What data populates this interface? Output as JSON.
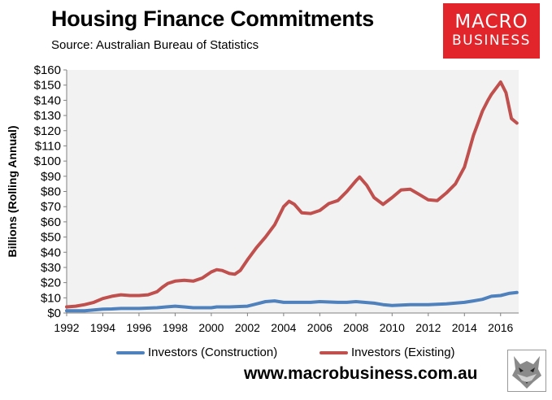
{
  "header": {
    "title": "Housing Finance Commitments",
    "subtitle": "Source: Australian Bureau of Statistics"
  },
  "logo": {
    "line1": "MACRO",
    "line2": "BUSINESS",
    "color": "#e2242b"
  },
  "footer": {
    "website": "www.macrobusiness.com.au",
    "mascot_icon": "wolf-head-icon"
  },
  "chart_data": {
    "type": "line",
    "title": "Housing Finance Commitments",
    "subtitle": "Source: Australian Bureau of Statistics",
    "xlabel": "",
    "ylabel": "Billions (Rolling Annual)",
    "xlim": [
      1992,
      2017
    ],
    "ylim": [
      0,
      160
    ],
    "x_ticks": [
      1992,
      1994,
      1996,
      1998,
      2000,
      2002,
      2004,
      2006,
      2008,
      2010,
      2012,
      2014,
      2016
    ],
    "x_tick_labels": [
      "1992",
      "1994",
      "1996",
      "1998",
      "2000",
      "2002",
      "2004",
      "2006",
      "2008",
      "2010",
      "2012",
      "2014",
      "2016"
    ],
    "y_ticks": [
      0,
      10,
      20,
      30,
      40,
      50,
      60,
      70,
      80,
      90,
      100,
      110,
      120,
      130,
      140,
      150,
      160
    ],
    "y_tick_labels": [
      "$0",
      "$10",
      "$20",
      "$30",
      "$40",
      "$50",
      "$60",
      "$70",
      "$80",
      "$90",
      "$100",
      "$110",
      "$120",
      "$130",
      "$140",
      "$150",
      "$160"
    ],
    "grid": false,
    "plot_background": "#f2f2f2",
    "legend_position": "bottom",
    "series": [
      {
        "name": "Investors (Construction)",
        "color": "#4f81bd",
        "x": [
          1992,
          1993,
          1993.5,
          1994,
          1994.5,
          1995,
          1996,
          1997,
          1997.5,
          1998,
          1998.5,
          1999,
          2000,
          2000.3,
          2001,
          2002,
          2002.5,
          2003,
          2003.5,
          2004,
          2005,
          2005.5,
          2006,
          2007,
          2007.5,
          2008,
          2009,
          2009.5,
          2010,
          2011,
          2012,
          2013,
          2014,
          2014.5,
          2015,
          2015.5,
          2016,
          2016.5,
          2016.9
        ],
        "values": [
          1.5,
          1.5,
          2,
          2.5,
          2.7,
          3,
          3,
          3.5,
          4,
          4.5,
          4,
          3.5,
          3.5,
          4,
          4,
          4.5,
          6,
          7.5,
          8,
          7,
          7,
          7,
          7.5,
          7,
          7,
          7.5,
          6.5,
          5.5,
          5,
          5.5,
          5.5,
          6,
          7,
          8,
          9,
          11,
          11.5,
          13,
          13.5
        ]
      },
      {
        "name": "Investors (Existing)",
        "color": "#c0504d",
        "x": [
          1992,
          1992.5,
          1993,
          1993.5,
          1994,
          1994.5,
          1995,
          1995.5,
          1996,
          1996.5,
          1997,
          1997.3,
          1997.6,
          1998,
          1998.5,
          1999,
          1999.5,
          2000,
          2000.3,
          2000.6,
          2001,
          2001.3,
          2001.6,
          2002,
          2002.5,
          2003,
          2003.5,
          2004,
          2004.3,
          2004.6,
          2005,
          2005.5,
          2006,
          2006.5,
          2007,
          2007.5,
          2008,
          2008.2,
          2008.6,
          2009,
          2009.5,
          2010,
          2010.5,
          2011,
          2011.5,
          2012,
          2012.5,
          2013,
          2013.5,
          2014,
          2014.5,
          2015,
          2015.3,
          2015.5,
          2016,
          2016.3,
          2016.6,
          2016.9
        ],
        "values": [
          4,
          4.5,
          5.5,
          7,
          9.5,
          11,
          12,
          11.5,
          11.5,
          12,
          14,
          17,
          19.5,
          21,
          21.5,
          21,
          23,
          27,
          28.5,
          28,
          26,
          25.5,
          28,
          35,
          43,
          50,
          58,
          70,
          73.5,
          71.5,
          66,
          65.5,
          67.5,
          72,
          74,
          80,
          87,
          89.5,
          84,
          76,
          71.5,
          76,
          81,
          81.5,
          78,
          74.5,
          74,
          79,
          85,
          96,
          117,
          133,
          140,
          144,
          152,
          145,
          128,
          125
        ]
      }
    ],
    "legend": [
      "Investors (Construction)",
      "Investors (Existing)"
    ]
  }
}
